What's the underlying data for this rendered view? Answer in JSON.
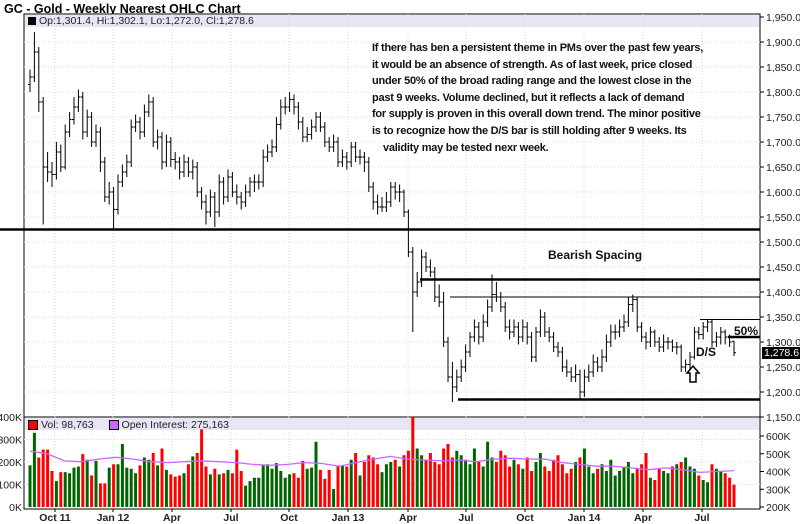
{
  "title": "GC - Gold - Weekly Nearest OHLC Chart",
  "price_legend": "Op:1,301.4, Hi:1,302.1, Lo:1,272.0, Cl:1,278.6",
  "volume_legend": {
    "vol": "Vol: 98,763",
    "oi": "Open Interest: 275,163"
  },
  "current_price_label": "1,278.6",
  "annotation_lines": [
    "If there has ben a persistent theme in PMs over the past few years,",
    "it would be an absence of strength.  As of last week, price closed",
    "under 50% of the broad rading range and the lowest close in the",
    "past 9 weeks.  Volume declined, but it reflects a lack of demand",
    "for supply is proven in this overall down trend.  The minor positive",
    "is to recognize how the D/S bar is still holding after 9 weeks.  Its",
    "validity may be tested nexr week."
  ],
  "labels": {
    "bearish_spacing": "Bearish Spacing",
    "fifty_pct": "50%",
    "ds": "D/S"
  },
  "colors": {
    "up_volume": "#006400",
    "down_volume": "#ff0000",
    "open_interest": "#cc66ff",
    "legend_band": "#e6e6f5",
    "bars": "#000000"
  },
  "chart_data": [
    {
      "type": "ohlc",
      "title": "GC - Gold - Weekly Nearest OHLC Chart",
      "ylim": [
        1150,
        1950
      ],
      "y_ticks": [
        "1,950.0",
        "1,900.0",
        "1,850.0",
        "1,800.0",
        "1,750.0",
        "1,700.0",
        "1,650.0",
        "1,600.0",
        "1,550.0",
        "1,500.0",
        "1,450.0",
        "1,400.0",
        "1,350.0",
        "1,300.0",
        "1,250.0",
        "1,200.0",
        "1,150.0"
      ],
      "x_ticks": [
        "Oct 11",
        "Jan 12",
        "Apr",
        "Jul",
        "Oct",
        "Jan 13",
        "Apr",
        "Jul",
        "Oct",
        "Jan 14",
        "Apr",
        "Jul"
      ],
      "grid": true,
      "horizontal_lines": [
        {
          "price": 1525,
          "style": "thick"
        },
        {
          "price": 1425,
          "style": "thick"
        },
        {
          "price": 1390,
          "style": "thin"
        },
        {
          "price": 1345,
          "style": "thin"
        },
        {
          "price": 1310,
          "style": "thick"
        },
        {
          "price": 1185,
          "style": "thick"
        }
      ],
      "bars_ohlc": [
        [
          1815,
          1845,
          1800,
          1830
        ],
        [
          1830,
          1920,
          1820,
          1880
        ],
        [
          1880,
          1890,
          1760,
          1780
        ],
        [
          1780,
          1790,
          1535,
          1650
        ],
        [
          1650,
          1680,
          1620,
          1640
        ],
        [
          1640,
          1660,
          1610,
          1635
        ],
        [
          1635,
          1700,
          1625,
          1680
        ],
        [
          1680,
          1695,
          1640,
          1650
        ],
        [
          1650,
          1735,
          1645,
          1720
        ],
        [
          1720,
          1760,
          1710,
          1745
        ],
        [
          1745,
          1790,
          1735,
          1770
        ],
        [
          1770,
          1805,
          1760,
          1790
        ],
        [
          1790,
          1800,
          1705,
          1720
        ],
        [
          1720,
          1765,
          1710,
          1750
        ],
        [
          1750,
          1760,
          1690,
          1700
        ],
        [
          1700,
          1735,
          1690,
          1720
        ],
        [
          1720,
          1730,
          1640,
          1660
        ],
        [
          1660,
          1670,
          1580,
          1590
        ],
        [
          1590,
          1620,
          1575,
          1600
        ],
        [
          1600,
          1610,
          1525,
          1565
        ],
        [
          1565,
          1635,
          1555,
          1620
        ],
        [
          1620,
          1655,
          1610,
          1640
        ],
        [
          1640,
          1675,
          1630,
          1660
        ],
        [
          1660,
          1745,
          1650,
          1730
        ],
        [
          1730,
          1755,
          1720,
          1740
        ],
        [
          1740,
          1750,
          1705,
          1720
        ],
        [
          1720,
          1775,
          1710,
          1760
        ],
        [
          1760,
          1795,
          1750,
          1780
        ],
        [
          1780,
          1790,
          1690,
          1700
        ],
        [
          1700,
          1725,
          1685,
          1710
        ],
        [
          1710,
          1720,
          1645,
          1660
        ],
        [
          1660,
          1715,
          1650,
          1700
        ],
        [
          1700,
          1710,
          1650,
          1665
        ],
        [
          1665,
          1680,
          1645,
          1660
        ],
        [
          1660,
          1670,
          1625,
          1640
        ],
        [
          1640,
          1675,
          1630,
          1660
        ],
        [
          1660,
          1670,
          1630,
          1640
        ],
        [
          1640,
          1665,
          1625,
          1650
        ],
        [
          1650,
          1660,
          1590,
          1600
        ],
        [
          1600,
          1610,
          1565,
          1580
        ],
        [
          1580,
          1595,
          1535,
          1560
        ],
        [
          1560,
          1605,
          1550,
          1590
        ],
        [
          1590,
          1600,
          1530,
          1560
        ],
        [
          1560,
          1635,
          1550,
          1620
        ],
        [
          1620,
          1630,
          1575,
          1590
        ],
        [
          1590,
          1645,
          1580,
          1630
        ],
        [
          1630,
          1640,
          1590,
          1600
        ],
        [
          1600,
          1615,
          1575,
          1590
        ],
        [
          1590,
          1600,
          1565,
          1580
        ],
        [
          1580,
          1615,
          1570,
          1600
        ],
        [
          1600,
          1630,
          1590,
          1620
        ],
        [
          1620,
          1635,
          1600,
          1620
        ],
        [
          1620,
          1635,
          1605,
          1620
        ],
        [
          1620,
          1685,
          1610,
          1670
        ],
        [
          1670,
          1695,
          1660,
          1680
        ],
        [
          1680,
          1705,
          1670,
          1690
        ],
        [
          1690,
          1750,
          1680,
          1735
        ],
        [
          1735,
          1785,
          1725,
          1770
        ],
        [
          1770,
          1790,
          1755,
          1770
        ],
        [
          1770,
          1800,
          1760,
          1785
        ],
        [
          1785,
          1795,
          1755,
          1770
        ],
        [
          1770,
          1780,
          1725,
          1740
        ],
        [
          1740,
          1750,
          1700,
          1710
        ],
        [
          1710,
          1730,
          1700,
          1715
        ],
        [
          1715,
          1745,
          1705,
          1730
        ],
        [
          1730,
          1760,
          1720,
          1750
        ],
        [
          1750,
          1760,
          1720,
          1730
        ],
        [
          1730,
          1740,
          1690,
          1700
        ],
        [
          1700,
          1710,
          1680,
          1690
        ],
        [
          1690,
          1715,
          1680,
          1700
        ],
        [
          1700,
          1710,
          1650,
          1660
        ],
        [
          1660,
          1685,
          1650,
          1670
        ],
        [
          1670,
          1680,
          1645,
          1660
        ],
        [
          1660,
          1700,
          1650,
          1690
        ],
        [
          1690,
          1700,
          1660,
          1670
        ],
        [
          1670,
          1685,
          1655,
          1670
        ],
        [
          1670,
          1680,
          1640,
          1660
        ],
        [
          1660,
          1670,
          1600,
          1610
        ],
        [
          1610,
          1620,
          1565,
          1580
        ],
        [
          1580,
          1595,
          1555,
          1570
        ],
        [
          1570,
          1590,
          1560,
          1570
        ],
        [
          1570,
          1600,
          1560,
          1580
        ],
        [
          1580,
          1620,
          1570,
          1610
        ],
        [
          1610,
          1620,
          1585,
          1600
        ],
        [
          1600,
          1615,
          1580,
          1600
        ],
        [
          1600,
          1605,
          1550,
          1560
        ],
        [
          1560,
          1565,
          1470,
          1480
        ],
        [
          1480,
          1490,
          1320,
          1400
        ],
        [
          1400,
          1440,
          1390,
          1420
        ],
        [
          1420,
          1485,
          1410,
          1470
        ],
        [
          1470,
          1480,
          1440,
          1450
        ],
        [
          1450,
          1465,
          1430,
          1440
        ],
        [
          1440,
          1450,
          1380,
          1390
        ],
        [
          1390,
          1415,
          1370,
          1380
        ],
        [
          1380,
          1400,
          1290,
          1300
        ],
        [
          1300,
          1310,
          1220,
          1230
        ],
        [
          1230,
          1260,
          1180,
          1210
        ],
        [
          1210,
          1245,
          1200,
          1230
        ],
        [
          1230,
          1265,
          1220,
          1250
        ],
        [
          1250,
          1295,
          1240,
          1280
        ],
        [
          1280,
          1320,
          1270,
          1310
        ],
        [
          1310,
          1345,
          1300,
          1330
        ],
        [
          1330,
          1340,
          1295,
          1310
        ],
        [
          1310,
          1355,
          1300,
          1340
        ],
        [
          1340,
          1385,
          1330,
          1370
        ],
        [
          1370,
          1435,
          1360,
          1395
        ],
        [
          1395,
          1420,
          1380,
          1390
        ],
        [
          1390,
          1400,
          1360,
          1370
        ],
        [
          1370,
          1380,
          1320,
          1330
        ],
        [
          1330,
          1345,
          1305,
          1320
        ],
        [
          1320,
          1345,
          1310,
          1330
        ],
        [
          1330,
          1340,
          1295,
          1310
        ],
        [
          1310,
          1345,
          1300,
          1330
        ],
        [
          1330,
          1340,
          1295,
          1310
        ],
        [
          1310,
          1320,
          1260,
          1270
        ],
        [
          1270,
          1330,
          1260,
          1320
        ],
        [
          1320,
          1365,
          1310,
          1350
        ],
        [
          1350,
          1360,
          1310,
          1320
        ],
        [
          1320,
          1330,
          1300,
          1310
        ],
        [
          1310,
          1320,
          1280,
          1290
        ],
        [
          1290,
          1300,
          1270,
          1280
        ],
        [
          1280,
          1290,
          1240,
          1250
        ],
        [
          1250,
          1265,
          1230,
          1240
        ],
        [
          1240,
          1250,
          1220,
          1230
        ],
        [
          1230,
          1255,
          1220,
          1235
        ],
        [
          1235,
          1245,
          1185,
          1200
        ],
        [
          1200,
          1245,
          1190,
          1230
        ],
        [
          1230,
          1255,
          1220,
          1240
        ],
        [
          1240,
          1275,
          1230,
          1260
        ],
        [
          1260,
          1270,
          1240,
          1250
        ],
        [
          1250,
          1285,
          1240,
          1270
        ],
        [
          1270,
          1315,
          1260,
          1300
        ],
        [
          1300,
          1335,
          1290,
          1320
        ],
        [
          1320,
          1335,
          1305,
          1320
        ],
        [
          1320,
          1345,
          1310,
          1330
        ],
        [
          1330,
          1355,
          1320,
          1340
        ],
        [
          1340,
          1390,
          1330,
          1375
        ],
        [
          1375,
          1395,
          1360,
          1385
        ],
        [
          1385,
          1390,
          1320,
          1330
        ],
        [
          1330,
          1340,
          1300,
          1310
        ],
        [
          1310,
          1320,
          1285,
          1300
        ],
        [
          1300,
          1330,
          1290,
          1320
        ],
        [
          1320,
          1325,
          1290,
          1300
        ],
        [
          1300,
          1310,
          1280,
          1290
        ],
        [
          1290,
          1315,
          1280,
          1300
        ],
        [
          1300,
          1310,
          1285,
          1300
        ],
        [
          1300,
          1305,
          1280,
          1290
        ],
        [
          1290,
          1300,
          1275,
          1290
        ],
        [
          1290,
          1295,
          1240,
          1250
        ],
        [
          1250,
          1265,
          1240,
          1255
        ],
        [
          1255,
          1280,
          1245,
          1270
        ],
        [
          1270,
          1330,
          1265,
          1320
        ],
        [
          1320,
          1330,
          1305,
          1315
        ],
        [
          1315,
          1340,
          1305,
          1330
        ],
        [
          1330,
          1345,
          1320,
          1340
        ],
        [
          1340,
          1345,
          1290,
          1300
        ],
        [
          1300,
          1320,
          1290,
          1310
        ],
        [
          1310,
          1330,
          1295,
          1320
        ],
        [
          1320,
          1325,
          1295,
          1310
        ],
        [
          1310,
          1315,
          1290,
          1300
        ],
        [
          1301.4,
          1302.1,
          1272.0,
          1278.6
        ]
      ]
    },
    {
      "type": "bar+line",
      "series": [
        {
          "name": "Vol",
          "unit": "K",
          "ylim": [
            0,
            400
          ],
          "y_ticks": [
            "400K",
            "300K",
            "200K",
            "100K",
            "0K"
          ],
          "values": [
            185,
            330,
            220,
            255,
            255,
            160,
            115,
            155,
            155,
            150,
            175,
            180,
            235,
            210,
            140,
            205,
            105,
            105,
            175,
            190,
            190,
            280,
            175,
            170,
            150,
            185,
            220,
            210,
            240,
            185,
            260,
            165,
            145,
            135,
            140,
            150,
            190,
            225,
            240,
            345,
            180,
            145,
            170,
            145,
            150,
            165,
            150,
            255,
            160,
            95,
            115,
            130,
            130,
            185,
            190,
            170,
            195,
            160,
            130,
            145,
            150,
            130,
            205,
            170,
            175,
            290,
            165,
            125,
            165,
            80,
            180,
            185,
            180,
            210,
            240,
            140,
            200,
            230,
            220,
            190,
            155,
            190,
            200,
            210,
            180,
            230,
            250,
            400,
            260,
            230,
            210,
            240,
            200,
            190,
            260,
            280,
            220,
            250,
            230,
            210,
            190,
            260,
            200,
            180,
            290,
            220,
            200,
            250,
            230,
            180,
            210,
            190,
            170,
            220,
            160,
            200,
            240,
            180,
            160,
            210,
            230,
            190,
            150,
            170,
            200,
            220,
            260,
            180,
            150,
            170,
            190,
            160,
            210,
            140,
            160,
            180,
            200,
            150,
            170,
            190,
            240,
            130,
            120,
            170,
            160,
            150,
            180,
            190,
            200,
            220,
            180,
            170,
            140,
            120,
            110,
            190,
            170,
            160,
            150,
            130,
            99
          ]
        },
        {
          "name": "Open Interest",
          "unit": "K",
          "ylim": [
            200,
            650
          ],
          "y_ticks": [
            "600K",
            "500K",
            "400K",
            "300K",
            "200K"
          ],
          "values": [
            515,
            500,
            460,
            455,
            470,
            480,
            470,
            455,
            450,
            455,
            460,
            455,
            450,
            440,
            435,
            440,
            450,
            445,
            430,
            450,
            470,
            485,
            470,
            465,
            460,
            465,
            455,
            470,
            475,
            470,
            470,
            450,
            440,
            430,
            430,
            420,
            410,
            420,
            410,
            395,
            400,
            405
          ]
        }
      ]
    }
  ]
}
